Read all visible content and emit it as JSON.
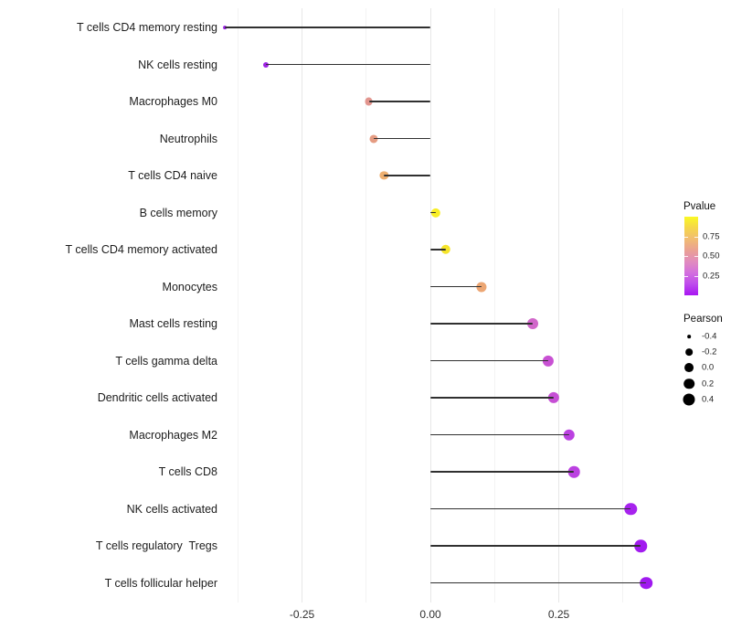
{
  "chart_data": {
    "type": "lollipop",
    "orientation": "horizontal",
    "xlabel": "",
    "ylabel": "",
    "grid": "vertical-only",
    "x_axis": {
      "tick_labels": [
        "-0.25",
        "0.00",
        "0.25"
      ],
      "tick_values": [
        -0.25,
        0.0,
        0.25
      ],
      "minor_grid_values": [
        -0.375,
        -0.125,
        0.125,
        0.375
      ],
      "xlim": [
        -0.42,
        0.46
      ]
    },
    "categories": [
      "T cells CD4 memory resting",
      "NK cells resting",
      "Macrophages M0",
      "Neutrophils",
      "T cells CD4 naive",
      "B cells memory",
      "T cells CD4 memory activated",
      "Monocytes",
      "Mast cells resting",
      "T cells gamma delta",
      "Dendritic cells activated",
      "Macrophages M2",
      "T cells CD8",
      "NK cells activated",
      "T cells regulatory  Tregs",
      "T cells follicular helper"
    ],
    "series": [
      {
        "name": "Pearson",
        "values": [
          -0.4,
          -0.32,
          -0.12,
          -0.11,
          -0.09,
          0.01,
          0.03,
          0.1,
          0.2,
          0.23,
          0.24,
          0.27,
          0.28,
          0.39,
          0.41,
          0.42
        ]
      }
    ],
    "point_colors": [
      "#9B1FE8",
      "#9D23E3",
      "#E2958E",
      "#E59C82",
      "#EEAF70",
      "#F8EE26",
      "#F5E42A",
      "#ECA673",
      "#D167CA",
      "#C851D3",
      "#C64FD5",
      "#BB41E1",
      "#BB41E1",
      "#A723EE",
      "#A21BEF",
      "#A019F0"
    ],
    "stem_color": "#303030",
    "legend_pvalue": {
      "title": "Pvalue",
      "tick_labels": [
        "0.75",
        "0.50",
        "0.25"
      ],
      "tick_values": [
        0.75,
        0.5,
        0.25
      ],
      "bar_range": [
        0,
        1
      ],
      "gradient_top_to_bottom": [
        "#FAF824",
        "#F5D64A",
        "#F1BC72",
        "#EAA094",
        "#E18BBE",
        "#D36FDE",
        "#BE4BEC",
        "#A815F2"
      ]
    },
    "legend_pearson": {
      "title": "Pearson",
      "entry_labels": [
        "-0.4",
        "-0.2",
        "0.0",
        "0.2",
        "0.4"
      ],
      "entry_values": [
        -0.4,
        -0.2,
        0.0,
        0.2,
        0.4
      ],
      "key_color": "#000000"
    }
  }
}
